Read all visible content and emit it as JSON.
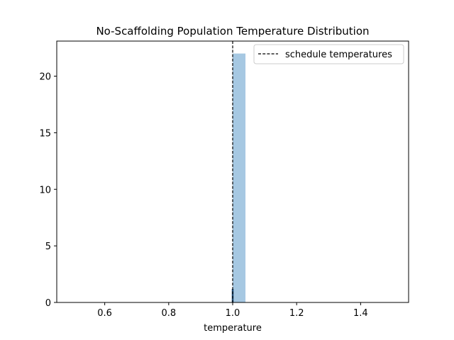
{
  "chart_data": {
    "type": "bar",
    "title": "No-Scaffolding Population Temperature Distribution",
    "xlabel": "temperature",
    "ylabel": "",
    "xlim": [
      0.45,
      1.55
    ],
    "ylim": [
      0,
      23.1
    ],
    "x_ticks": [
      0.6,
      0.8,
      1.0,
      1.2,
      1.4
    ],
    "x_tick_labels": [
      "0.6",
      "0.8",
      "1.0",
      "1.2",
      "1.4"
    ],
    "y_ticks": [
      0,
      5,
      10,
      15,
      20
    ],
    "y_tick_labels": [
      "0",
      "5",
      "10",
      "15",
      "20"
    ],
    "bars": [
      {
        "x0": 1.0,
        "x1": 1.04,
        "count": 22
      }
    ],
    "bar_color": "#a6c8e2",
    "schedule_temperatures": [
      1.0
    ],
    "schedule_line_color": "#000000",
    "rug_points": [
      1.0
    ],
    "rug_color": "#1f4e79",
    "grid": false,
    "legend": {
      "entries": [
        "schedule temperatures"
      ],
      "placement": "upper-right"
    }
  }
}
